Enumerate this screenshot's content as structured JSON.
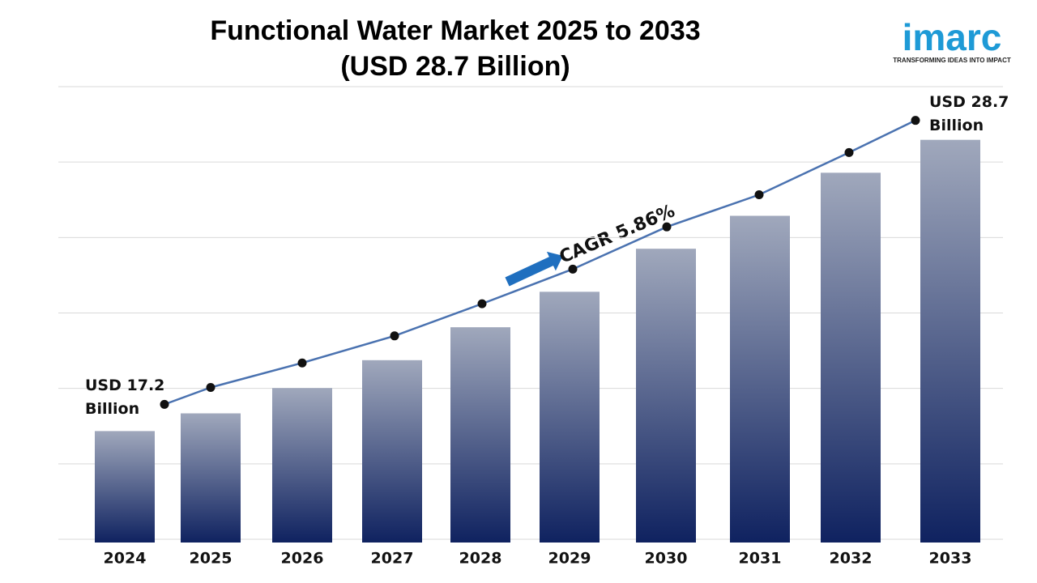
{
  "chart_data": {
    "type": "bar",
    "title": "Functional Water Market 2025 to 2033",
    "subtitle": "(USD 28.7 Billion)",
    "categories": [
      "2024",
      "2025",
      "2026",
      "2027",
      "2028",
      "2029",
      "2030",
      "2031",
      "2032",
      "2033"
    ],
    "values": [
      17.2,
      17.9,
      18.9,
      20.0,
      21.3,
      22.7,
      24.4,
      25.7,
      27.4,
      28.7
    ],
    "value_labels": [
      "USD 17.2 Billion",
      null,
      null,
      null,
      null,
      null,
      null,
      null,
      null,
      "USD 28.7 Billion"
    ],
    "color": "#0f2260",
    "line_color": "#4a72b0",
    "ylim": [
      12.8,
      30.8
    ],
    "grid": true,
    "annotation": "CAGR 5.86%"
  },
  "logo": {
    "name": "imarc",
    "tagline": "TRANSFORMING IDEAS INTO IMPACT"
  }
}
